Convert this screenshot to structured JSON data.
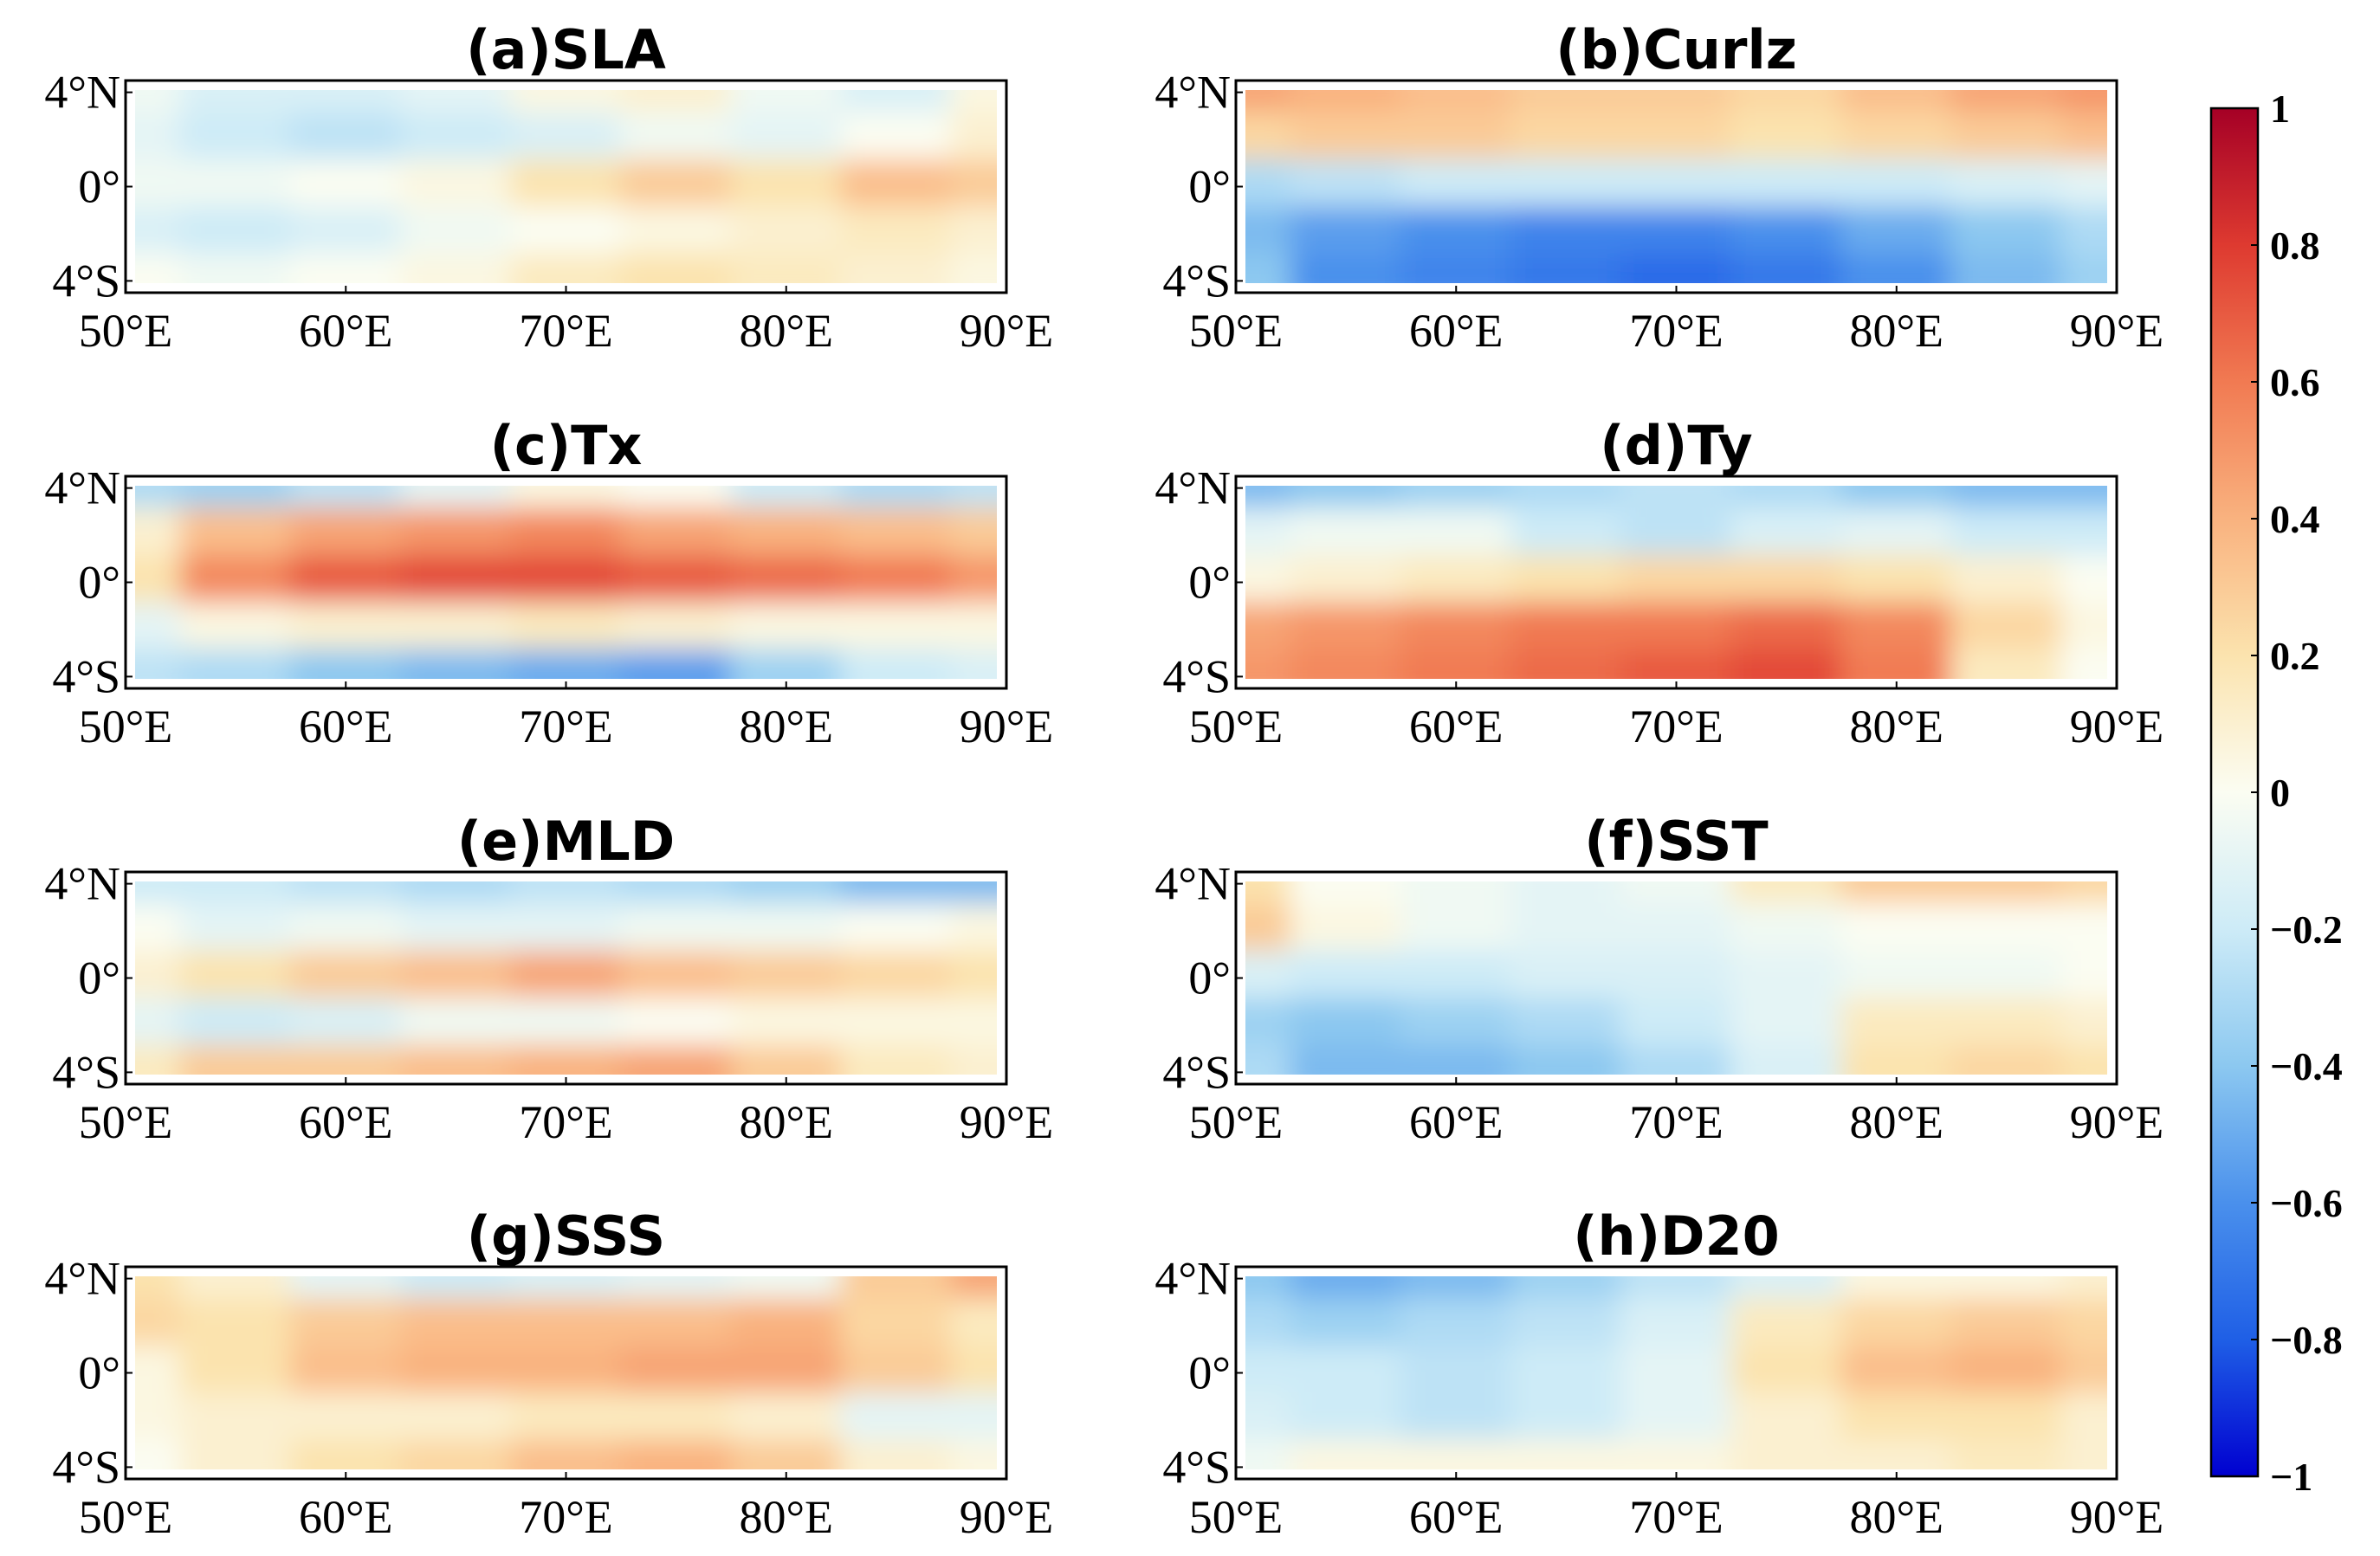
{
  "chart_data": {
    "type": "heatmap",
    "x_tick_labels": [
      "50°E",
      "60°E",
      "70°E",
      "80°E",
      "90°E"
    ],
    "x_ticks": [
      50,
      60,
      70,
      80,
      90
    ],
    "y_tick_labels": [
      "4°N",
      "0°",
      "4°S"
    ],
    "y_ticks": [
      4,
      0,
      -4
    ],
    "xlim": [
      50,
      90
    ],
    "ylim": [
      -4.5,
      4.5
    ],
    "colorbar": {
      "range": [
        -1,
        1
      ],
      "tick_values": [
        1,
        0.8,
        0.6,
        0.4,
        0.2,
        0,
        -0.2,
        -0.4,
        -0.6,
        -0.8,
        -1
      ],
      "tick_labels": [
        "1",
        "0.8",
        "0.6",
        "0.4",
        "0.2",
        "0",
        "−0.2",
        "−0.4",
        "−0.6",
        "−0.8",
        "−1"
      ],
      "colormap": [
        "#0000d0",
        "#1f5fe6",
        "#4a90ec",
        "#8cc8f0",
        "#cdebf7",
        "#fbfdf2",
        "#fbe3ae",
        "#f9b27f",
        "#f17a52",
        "#de3a30",
        "#a50026"
      ]
    },
    "panels": [
      {
        "id": "a",
        "title": "(a)SLA",
        "lats": [
          4,
          2,
          0,
          -2,
          -4
        ],
        "lons": [
          50,
          55,
          60,
          65,
          70,
          75,
          80,
          85,
          90
        ],
        "values": [
          [
            -0.05,
            -0.15,
            -0.15,
            -0.1,
            0.05,
            0.1,
            -0.05,
            -0.15,
            0.05
          ],
          [
            -0.1,
            -0.2,
            -0.25,
            -0.2,
            -0.15,
            -0.05,
            -0.1,
            0.0,
            0.1
          ],
          [
            -0.05,
            -0.05,
            0.0,
            0.05,
            0.2,
            0.3,
            0.2,
            0.35,
            0.3
          ],
          [
            -0.15,
            -0.2,
            -0.15,
            -0.05,
            0.0,
            0.05,
            0.1,
            0.15,
            0.1
          ],
          [
            0.0,
            -0.05,
            0.0,
            0.05,
            0.15,
            0.2,
            0.15,
            0.1,
            0.05
          ]
        ]
      },
      {
        "id": "b",
        "title": "(b)Curlz",
        "lats": [
          4,
          2,
          0,
          -2,
          -4
        ],
        "lons": [
          50,
          55,
          60,
          65,
          70,
          75,
          80,
          85,
          90
        ],
        "values": [
          [
            0.45,
            0.4,
            0.35,
            0.3,
            0.3,
            0.25,
            0.35,
            0.45,
            0.5
          ],
          [
            0.25,
            0.3,
            0.3,
            0.25,
            0.25,
            0.2,
            0.25,
            0.3,
            0.35
          ],
          [
            -0.3,
            -0.25,
            -0.2,
            -0.2,
            -0.2,
            -0.2,
            -0.2,
            -0.15,
            -0.1
          ],
          [
            -0.45,
            -0.55,
            -0.6,
            -0.65,
            -0.65,
            -0.6,
            -0.5,
            -0.4,
            -0.3
          ],
          [
            -0.4,
            -0.6,
            -0.65,
            -0.7,
            -0.75,
            -0.7,
            -0.6,
            -0.45,
            -0.35
          ]
        ]
      },
      {
        "id": "c",
        "title": "(c)Tx",
        "lats": [
          4,
          2,
          0,
          -2,
          -4
        ],
        "lons": [
          50,
          55,
          60,
          65,
          70,
          75,
          80,
          85,
          90
        ],
        "values": [
          [
            -0.3,
            -0.35,
            -0.25,
            -0.1,
            0.05,
            0.0,
            -0.2,
            -0.3,
            -0.25
          ],
          [
            0.1,
            0.35,
            0.45,
            0.5,
            0.55,
            0.45,
            0.4,
            0.35,
            0.3
          ],
          [
            0.2,
            0.55,
            0.7,
            0.75,
            0.75,
            0.7,
            0.65,
            0.6,
            0.5
          ],
          [
            -0.1,
            0.05,
            0.1,
            0.1,
            0.15,
            0.1,
            0.05,
            0.05,
            0.05
          ],
          [
            -0.25,
            -0.3,
            -0.4,
            -0.45,
            -0.5,
            -0.55,
            -0.35,
            -0.2,
            -0.15
          ]
        ]
      },
      {
        "id": "d",
        "title": "(d)Ty",
        "lats": [
          4,
          2,
          0,
          -2,
          -4
        ],
        "lons": [
          50,
          55,
          60,
          65,
          70,
          75,
          80,
          85,
          90
        ],
        "values": [
          [
            -0.45,
            -0.4,
            -0.35,
            -0.3,
            -0.25,
            -0.3,
            -0.4,
            -0.45,
            -0.45
          ],
          [
            -0.1,
            -0.05,
            -0.05,
            -0.2,
            -0.25,
            -0.15,
            -0.1,
            -0.2,
            -0.2
          ],
          [
            0.05,
            0.1,
            0.15,
            0.2,
            0.25,
            0.25,
            0.2,
            0.1,
            0.0
          ],
          [
            0.45,
            0.5,
            0.55,
            0.6,
            0.6,
            0.65,
            0.55,
            0.25,
            0.05
          ],
          [
            0.5,
            0.55,
            0.6,
            0.65,
            0.7,
            0.75,
            0.6,
            0.15,
            0.0
          ]
        ]
      },
      {
        "id": "e",
        "title": "(e)MLD",
        "lats": [
          4,
          2,
          0,
          -2,
          -4
        ],
        "lons": [
          50,
          55,
          60,
          65,
          70,
          75,
          80,
          85,
          90
        ],
        "values": [
          [
            -0.2,
            -0.2,
            -0.25,
            -0.3,
            -0.25,
            -0.3,
            -0.35,
            -0.45,
            -0.45
          ],
          [
            0.0,
            -0.1,
            -0.05,
            -0.1,
            -0.1,
            -0.05,
            -0.05,
            0.0,
            0.05
          ],
          [
            0.1,
            0.2,
            0.3,
            0.35,
            0.45,
            0.35,
            0.3,
            0.25,
            0.2
          ],
          [
            -0.1,
            -0.2,
            -0.15,
            -0.05,
            -0.05,
            0.0,
            0.05,
            0.05,
            0.05
          ],
          [
            0.15,
            0.3,
            0.3,
            0.35,
            0.4,
            0.45,
            0.3,
            0.15,
            0.1
          ]
        ]
      },
      {
        "id": "f",
        "title": "(f)SST",
        "lats": [
          4,
          2,
          0,
          -2,
          -4
        ],
        "lons": [
          50,
          55,
          60,
          65,
          70,
          75,
          80,
          85,
          90
        ],
        "values": [
          [
            0.2,
            0.0,
            -0.05,
            -0.1,
            -0.05,
            0.15,
            0.3,
            0.3,
            0.25
          ],
          [
            0.3,
            0.05,
            -0.05,
            -0.1,
            -0.1,
            -0.05,
            0.0,
            0.0,
            0.0
          ],
          [
            -0.15,
            -0.2,
            -0.2,
            -0.15,
            -0.15,
            -0.1,
            -0.05,
            -0.05,
            0.0
          ],
          [
            -0.35,
            -0.4,
            -0.35,
            -0.3,
            -0.2,
            -0.1,
            0.15,
            0.15,
            0.1
          ],
          [
            -0.3,
            -0.45,
            -0.45,
            -0.4,
            -0.3,
            -0.15,
            0.2,
            0.25,
            0.2
          ]
        ]
      },
      {
        "id": "g",
        "title": "(g)SSS",
        "lats": [
          4,
          2,
          0,
          -2,
          -4
        ],
        "lons": [
          50,
          55,
          60,
          65,
          70,
          75,
          80,
          85,
          90
        ],
        "values": [
          [
            0.2,
            0.1,
            -0.1,
            -0.2,
            -0.15,
            -0.1,
            -0.05,
            0.3,
            0.45
          ],
          [
            0.25,
            0.2,
            0.3,
            0.35,
            0.35,
            0.35,
            0.4,
            0.25,
            0.15
          ],
          [
            0.05,
            0.2,
            0.35,
            0.4,
            0.4,
            0.45,
            0.45,
            0.3,
            0.2
          ],
          [
            0.05,
            0.1,
            0.1,
            0.1,
            0.15,
            0.15,
            0.1,
            -0.1,
            -0.1
          ],
          [
            0.0,
            0.1,
            0.2,
            0.25,
            0.35,
            0.4,
            0.3,
            0.1,
            0.05
          ]
        ]
      },
      {
        "id": "h",
        "title": "(h)D20",
        "lats": [
          4,
          2,
          0,
          -2,
          -4
        ],
        "lons": [
          50,
          55,
          60,
          65,
          70,
          75,
          80,
          85,
          90
        ],
        "values": [
          [
            -0.4,
            -0.5,
            -0.45,
            -0.35,
            -0.25,
            -0.15,
            0.05,
            0.05,
            0.1
          ],
          [
            -0.3,
            -0.35,
            -0.3,
            -0.25,
            -0.15,
            0.15,
            0.25,
            0.3,
            0.25
          ],
          [
            -0.2,
            -0.2,
            -0.25,
            -0.2,
            -0.1,
            0.2,
            0.35,
            0.4,
            0.3
          ],
          [
            -0.15,
            -0.2,
            -0.25,
            -0.2,
            -0.1,
            0.1,
            0.2,
            0.2,
            0.1
          ],
          [
            -0.05,
            0.05,
            0.05,
            0.05,
            0.05,
            0.1,
            0.1,
            0.15,
            0.1
          ]
        ]
      }
    ]
  }
}
